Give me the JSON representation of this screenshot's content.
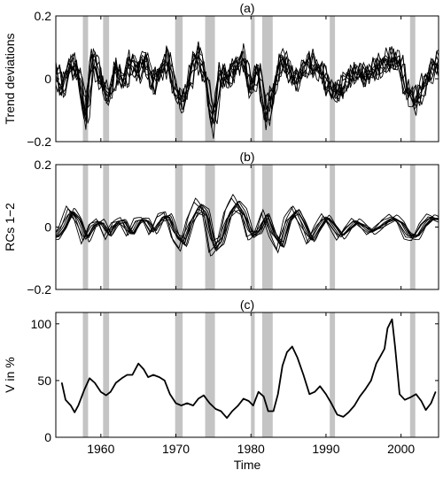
{
  "chart_data": [
    {
      "type": "line",
      "panel_label": "(a)",
      "ylabel": "Trend deviations",
      "xlabel": "",
      "xlim": [
        1954,
        2005
      ],
      "ylim": [
        -0.2,
        0.2
      ],
      "yticks": [
        -0.2,
        0,
        0.2
      ],
      "ytick_labels": [
        "−0.2",
        "0",
        "0.2"
      ],
      "xticks": [
        1960,
        1970,
        1980,
        1990,
        2000
      ],
      "xtick_labels": [],
      "grid": false,
      "legend": "none",
      "recession_bands": [
        [
          1957.6,
          1958.3
        ],
        [
          1960.3,
          1961.1
        ],
        [
          1969.9,
          1970.9
        ],
        [
          1973.9,
          1975.2
        ],
        [
          1980.0,
          1980.5
        ],
        [
          1981.5,
          1982.9
        ],
        [
          1990.5,
          1991.2
        ],
        [
          2001.2,
          2001.9
        ]
      ],
      "series_count": 9,
      "series_style": "multiple black lines (approximate)",
      "anchor_points": [
        [
          1954,
          0.02
        ],
        [
          1955,
          -0.03
        ],
        [
          1956,
          0.05
        ],
        [
          1957,
          0.02
        ],
        [
          1958,
          -0.12
        ],
        [
          1959,
          0.07
        ],
        [
          1960,
          0.0
        ],
        [
          1961,
          -0.07
        ],
        [
          1962,
          0.03
        ],
        [
          1963,
          -0.01
        ],
        [
          1964,
          0.05
        ],
        [
          1965,
          0.03
        ],
        [
          1966,
          0.06
        ],
        [
          1967,
          -0.02
        ],
        [
          1968,
          0.03
        ],
        [
          1969,
          0.06
        ],
        [
          1970,
          -0.04
        ],
        [
          1971,
          -0.08
        ],
        [
          1972,
          0.02
        ],
        [
          1973,
          0.08
        ],
        [
          1974,
          0.0
        ],
        [
          1975,
          -0.14
        ],
        [
          1976,
          0.02
        ],
        [
          1977,
          0.0
        ],
        [
          1978,
          0.04
        ],
        [
          1979,
          0.07
        ],
        [
          1980,
          -0.03
        ],
        [
          1981,
          0.03
        ],
        [
          1982,
          -0.12
        ],
        [
          1983,
          -0.05
        ],
        [
          1984,
          0.06
        ],
        [
          1985,
          0.03
        ],
        [
          1986,
          -0.01
        ],
        [
          1987,
          0.03
        ],
        [
          1988,
          0.05
        ],
        [
          1989,
          0.03
        ],
        [
          1990,
          0.0
        ],
        [
          1991,
          -0.05
        ],
        [
          1992,
          -0.03
        ],
        [
          1993,
          0.0
        ],
        [
          1994,
          0.02
        ],
        [
          1995,
          0.01
        ],
        [
          1996,
          0.02
        ],
        [
          1997,
          0.04
        ],
        [
          1998,
          0.05
        ],
        [
          1999,
          0.06
        ],
        [
          2000,
          0.04
        ],
        [
          2001,
          -0.05
        ],
        [
          2002,
          -0.07
        ],
        [
          2003,
          -0.03
        ],
        [
          2004,
          0.03
        ],
        [
          2005,
          0.05
        ]
      ]
    },
    {
      "type": "line",
      "panel_label": "(b)",
      "ylabel": "RCs 1−2",
      "xlabel": "",
      "xlim": [
        1954,
        2005
      ],
      "ylim": [
        -0.2,
        0.2
      ],
      "yticks": [
        -0.2,
        0,
        0.2
      ],
      "ytick_labels": [
        "−0.2",
        "0",
        "0.2"
      ],
      "xticks": [
        1960,
        1970,
        1980,
        1990,
        2000
      ],
      "xtick_labels": [],
      "grid": false,
      "legend": "none",
      "recession_bands": [
        [
          1957.6,
          1958.3
        ],
        [
          1960.3,
          1961.1
        ],
        [
          1969.9,
          1970.9
        ],
        [
          1973.9,
          1975.2
        ],
        [
          1980.0,
          1980.5
        ],
        [
          1981.5,
          1982.9
        ],
        [
          1990.5,
          1991.2
        ],
        [
          2001.2,
          2001.9
        ]
      ],
      "series_count": 9,
      "series_style": "multiple smooth black oscillating lines (approximate)",
      "anchor_points": [
        [
          1954,
          -0.03
        ],
        [
          1955,
          0.0
        ],
        [
          1956,
          0.05
        ],
        [
          1957,
          0.02
        ],
        [
          1958,
          -0.04
        ],
        [
          1959,
          0.01
        ],
        [
          1960,
          0.02
        ],
        [
          1961,
          -0.03
        ],
        [
          1962,
          0.01
        ],
        [
          1963,
          0.02
        ],
        [
          1964,
          -0.02
        ],
        [
          1965,
          0.02
        ],
        [
          1966,
          0.02
        ],
        [
          1967,
          -0.02
        ],
        [
          1968,
          0.03
        ],
        [
          1969,
          0.04
        ],
        [
          1970,
          -0.03
        ],
        [
          1971,
          -0.06
        ],
        [
          1972,
          0.02
        ],
        [
          1973,
          0.07
        ],
        [
          1974,
          0.05
        ],
        [
          1975,
          -0.07
        ],
        [
          1976,
          -0.05
        ],
        [
          1977,
          0.04
        ],
        [
          1978,
          0.08
        ],
        [
          1979,
          0.05
        ],
        [
          1980,
          -0.03
        ],
        [
          1981,
          -0.02
        ],
        [
          1982,
          0.04
        ],
        [
          1983,
          -0.02
        ],
        [
          1984,
          -0.06
        ],
        [
          1985,
          0.02
        ],
        [
          1986,
          0.05
        ],
        [
          1987,
          0.01
        ],
        [
          1988,
          -0.04
        ],
        [
          1989,
          0.0
        ],
        [
          1990,
          0.03
        ],
        [
          1991,
          0.0
        ],
        [
          1992,
          -0.03
        ],
        [
          1993,
          0.0
        ],
        [
          1994,
          0.02
        ],
        [
          1995,
          0.0
        ],
        [
          1996,
          -0.02
        ],
        [
          1997,
          0.0
        ],
        [
          1998,
          0.02
        ],
        [
          1999,
          0.03
        ],
        [
          2000,
          0.01
        ],
        [
          2001,
          -0.03
        ],
        [
          2002,
          -0.03
        ],
        [
          2003,
          0.01
        ],
        [
          2004,
          0.03
        ],
        [
          2005,
          0.02
        ]
      ]
    },
    {
      "type": "line",
      "panel_label": "(c)",
      "ylabel": "V in %",
      "xlabel": "Time",
      "xlim": [
        1954,
        2005
      ],
      "ylim": [
        0,
        110
      ],
      "yticks": [
        0,
        50,
        100
      ],
      "ytick_labels": [
        "0",
        "50",
        "100"
      ],
      "xticks": [
        1960,
        1970,
        1980,
        1990,
        2000
      ],
      "xtick_labels": [
        "1960",
        "1970",
        "1980",
        "1990",
        "2000"
      ],
      "grid": false,
      "legend": "none",
      "recession_bands": [
        [
          1957.6,
          1958.3
        ],
        [
          1960.3,
          1961.1
        ],
        [
          1969.9,
          1970.9
        ],
        [
          1973.9,
          1975.2
        ],
        [
          1980.0,
          1980.5
        ],
        [
          1981.5,
          1982.9
        ],
        [
          1990.5,
          1991.2
        ],
        [
          2001.2,
          2001.9
        ]
      ],
      "x": [
        1954.8,
        1955.3,
        1956.0,
        1956.5,
        1957.0,
        1957.8,
        1958.5,
        1959.2,
        1960.0,
        1960.7,
        1961.3,
        1962.0,
        1962.8,
        1963.5,
        1964.2,
        1965.0,
        1965.7,
        1966.3,
        1967.0,
        1967.8,
        1968.5,
        1969.2,
        1970.0,
        1970.7,
        1971.5,
        1972.3,
        1973.0,
        1973.7,
        1974.5,
        1975.3,
        1976.0,
        1976.8,
        1977.5,
        1978.3,
        1979.0,
        1979.7,
        1980.3,
        1981.0,
        1981.7,
        1982.3,
        1983.0,
        1983.6,
        1984.2,
        1984.8,
        1985.5,
        1986.2,
        1987.0,
        1987.8,
        1988.5,
        1989.2,
        1990.0,
        1990.7,
        1991.5,
        1992.3,
        1993.0,
        1993.8,
        1994.5,
        1995.2,
        1996.0,
        1996.7,
        1997.3,
        1997.8,
        1998.2,
        1998.5,
        1998.8,
        1999.2,
        1999.8,
        2000.5,
        2001.2,
        2002.0,
        2002.7,
        2003.3,
        2004.0,
        2004.6
      ],
      "values": [
        48,
        33,
        28,
        22,
        28,
        42,
        52,
        48,
        40,
        37,
        40,
        48,
        52,
        55,
        55,
        65,
        60,
        53,
        55,
        53,
        50,
        38,
        30,
        28,
        30,
        28,
        34,
        37,
        30,
        25,
        23,
        17,
        23,
        28,
        34,
        32,
        28,
        40,
        36,
        23,
        23,
        38,
        63,
        75,
        80,
        70,
        55,
        38,
        40,
        45,
        38,
        30,
        20,
        18,
        22,
        28,
        36,
        42,
        50,
        65,
        72,
        78,
        96,
        100,
        104,
        80,
        38,
        33,
        35,
        38,
        32,
        24,
        30,
        40
      ]
    }
  ]
}
